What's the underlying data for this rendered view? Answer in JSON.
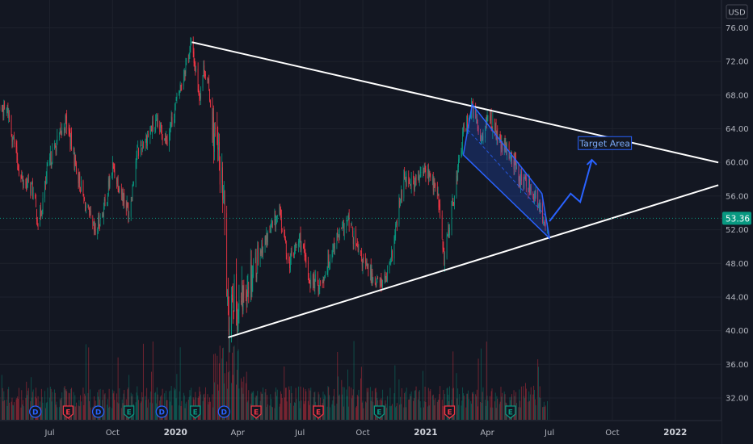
{
  "chart_data": {
    "type": "candlestick",
    "currency": "USD",
    "y_axis": {
      "range": [
        30,
        77
      ],
      "ticks": [
        "76.00",
        "72.00",
        "68.00",
        "64.00",
        "60.00",
        "56.00",
        "52.00",
        "48.00",
        "44.00",
        "40.00",
        "36.00",
        "32.00"
      ]
    },
    "x_axis": {
      "ticks": [
        {
          "label": "Jul",
          "bold": false
        },
        {
          "label": "Oct",
          "bold": false
        },
        {
          "label": "2020",
          "bold": true
        },
        {
          "label": "Apr",
          "bold": false
        },
        {
          "label": "Jul",
          "bold": false
        },
        {
          "label": "Oct",
          "bold": false
        },
        {
          "label": "2021",
          "bold": true
        },
        {
          "label": "Apr",
          "bold": false
        },
        {
          "label": "Jul",
          "bold": false
        },
        {
          "label": "Oct",
          "bold": false
        },
        {
          "label": "2022",
          "bold": true
        }
      ]
    },
    "price_anchors": [
      [
        "2019-04-01",
        67.0
      ],
      [
        "2019-05-01",
        66.0
      ],
      [
        "2019-05-20",
        58.0
      ],
      [
        "2019-06-05",
        57.0
      ],
      [
        "2019-06-15",
        52.5
      ],
      [
        "2019-06-30",
        60.0
      ],
      [
        "2019-07-25",
        65.0
      ],
      [
        "2019-08-10",
        59.0
      ],
      [
        "2019-08-20",
        55.5
      ],
      [
        "2019-09-05",
        51.5
      ],
      [
        "2019-09-20",
        55.0
      ],
      [
        "2019-10-01",
        59.5
      ],
      [
        "2019-10-25",
        54.0
      ],
      [
        "2019-11-05",
        61.0
      ],
      [
        "2019-12-01",
        64.5
      ],
      [
        "2019-12-20",
        63.0
      ],
      [
        "2020-01-05",
        68.0
      ],
      [
        "2020-01-20",
        73.0
      ],
      [
        "2020-01-25",
        74.0
      ],
      [
        "2020-02-05",
        68.0
      ],
      [
        "2020-02-12",
        71.5
      ],
      [
        "2020-02-20",
        68.0
      ],
      [
        "2020-02-25",
        64.0
      ],
      [
        "2020-03-05",
        60.0
      ],
      [
        "2020-03-12",
        55.0
      ],
      [
        "2020-03-18",
        40.5
      ],
      [
        "2020-03-24",
        45.0
      ],
      [
        "2020-04-01",
        42.0
      ],
      [
        "2020-04-20",
        47.0
      ],
      [
        "2020-05-10",
        50.5
      ],
      [
        "2020-06-01",
        54.0
      ],
      [
        "2020-06-15",
        48.0
      ],
      [
        "2020-07-01",
        51.0
      ],
      [
        "2020-07-15",
        46.0
      ],
      [
        "2020-08-01",
        45.5
      ],
      [
        "2020-08-20",
        50.5
      ],
      [
        "2020-09-10",
        53.0
      ],
      [
        "2020-09-25",
        49.0
      ],
      [
        "2020-10-10",
        47.0
      ],
      [
        "2020-10-25",
        45.5
      ],
      [
        "2020-11-08",
        46.5
      ],
      [
        "2020-11-20",
        53.0
      ],
      [
        "2020-12-01",
        58.5
      ],
      [
        "2020-12-15",
        57.5
      ],
      [
        "2020-12-31",
        59.0
      ],
      [
        "2021-01-10",
        58.0
      ],
      [
        "2021-01-20",
        55.5
      ],
      [
        "2021-01-28",
        48.0
      ],
      [
        "2021-02-05",
        53.0
      ],
      [
        "2021-02-15",
        58.0
      ],
      [
        "2021-02-25",
        63.5
      ],
      [
        "2021-03-10",
        66.5
      ],
      [
        "2021-03-22",
        63.0
      ],
      [
        "2021-04-05",
        65.5
      ],
      [
        "2021-04-20",
        62.0
      ],
      [
        "2021-05-05",
        61.0
      ],
      [
        "2021-05-20",
        58.0
      ],
      [
        "2021-06-05",
        57.0
      ],
      [
        "2021-06-20",
        53.6
      ],
      [
        "2021-06-28",
        53.4
      ]
    ],
    "volume_badges": [
      {
        "date": "2019-06-10",
        "letter": "D",
        "color": "#2962ff"
      },
      {
        "date": "2019-07-28",
        "letter": "E",
        "color": "#f23645"
      },
      {
        "date": "2019-09-10",
        "letter": "D",
        "color": "#2962ff"
      },
      {
        "date": "2019-10-25",
        "letter": "E",
        "color": "#089981"
      },
      {
        "date": "2019-12-12",
        "letter": "D",
        "color": "#2962ff"
      },
      {
        "date": "2020-01-30",
        "letter": "E",
        "color": "#089981"
      },
      {
        "date": "2020-03-12",
        "letter": "D",
        "color": "#2962ff"
      },
      {
        "date": "2020-04-28",
        "letter": "E",
        "color": "#f23645"
      },
      {
        "date": "2020-07-28",
        "letter": "E",
        "color": "#f23645"
      },
      {
        "date": "2020-10-25",
        "letter": "E",
        "color": "#089981"
      },
      {
        "date": "2021-02-05",
        "letter": "E",
        "color": "#f23645"
      },
      {
        "date": "2021-05-05",
        "letter": "E",
        "color": "#089981"
      }
    ],
    "trendlines": [
      {
        "name": "upper",
        "from": [
          "2020-01-25",
          74.3
        ],
        "to": [
          "2022-03-05",
          60.0
        ]
      },
      {
        "name": "lower",
        "from": [
          "2020-03-18",
          39.2
        ],
        "to": [
          "2022-03-05",
          57.3
        ]
      }
    ],
    "channel": {
      "upper": [
        [
          "2021-03-10",
          66.9
        ],
        [
          "2021-06-20",
          56.3
        ]
      ],
      "lower": [
        [
          "2021-02-25",
          60.9
        ],
        [
          "2021-07-01",
          51.0
        ]
      ]
    },
    "forecast_path": [
      [
        "2021-07-01",
        53.0
      ],
      [
        "2021-08-01",
        56.3
      ],
      [
        "2021-08-15",
        55.3
      ],
      [
        "2021-09-01",
        60.3
      ]
    ],
    "annotation": {
      "text": "Target Area",
      "date": "2021-09-20",
      "price": 62.3
    },
    "last_price": {
      "label": "53.36",
      "value": 53.36
    },
    "colors": {
      "background": "#131722",
      "grid": "#1e222d",
      "up": "#089981",
      "down": "#f23645",
      "trendline": "#ffffff",
      "channel": "#2962ff",
      "annotation": "#2962ff",
      "axis_text": "#b2b5be"
    }
  }
}
